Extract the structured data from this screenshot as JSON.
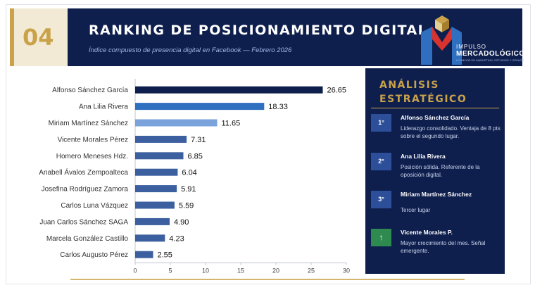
{
  "header": {
    "number": "04",
    "title": "RANKING DE POSICIONAMIENTO DIGITAL",
    "subtitle": "Índice compuesto de presencia digital en Facebook — Febrero 2026"
  },
  "logo": {
    "line1": "IMPULSO",
    "line2": "MERCADOLÓGICO",
    "tagline": "LO MEJOR EN MARKETING, ESTUDIOS Y OPINIÓN"
  },
  "chart_data": {
    "type": "bar",
    "orientation": "horizontal",
    "categories": [
      "Alfonso Sánchez García",
      "Ana Lilia Rivera",
      "Miriam Martínez Sánchez",
      "Vicente Morales Pérez",
      "Homero Meneses Hdz.",
      "Anabell Ávalos Zempoalteca",
      "Josefina Rodríguez Zamora",
      "Carlos Luna Vázquez",
      "Juan Carlos Sánchez SAGA",
      "Marcela González Castillo",
      "Carlos Augusto Pérez"
    ],
    "values": [
      26.65,
      18.33,
      11.65,
      7.31,
      6.85,
      6.04,
      5.91,
      5.59,
      4.9,
      4.23,
      2.55
    ],
    "value_labels": [
      "26.65",
      "18.33",
      "11.65",
      "7.31",
      "6.85",
      "6.04",
      "5.91",
      "5.59",
      "4.90",
      "4.23",
      "2.55"
    ],
    "colors": [
      "#0f1f4d",
      "#2f6fbf",
      "#7aa3db",
      "#3b5f9f",
      "#3b5f9f",
      "#3b5f9f",
      "#3b5f9f",
      "#3b5f9f",
      "#3b5f9f",
      "#3b5f9f",
      "#3b5f9f"
    ],
    "xlim": [
      0,
      30
    ],
    "xticks": [
      "0",
      "5",
      "10",
      "15",
      "20",
      "25",
      "30"
    ],
    "title": "",
    "xlabel": "",
    "ylabel": ""
  },
  "panel": {
    "title_line1": "ANÁLISIS",
    "title_line2": "ESTRATÉGICO",
    "items": [
      {
        "badge": "1°",
        "name": "Alfonso Sánchez García",
        "desc": "Liderazgo consolidado. Ventaja de 8 pts sobre el segundo lugar.",
        "icon": ""
      },
      {
        "badge": "2°",
        "name": "Ana Lilia Rivera",
        "desc": "Posición sólida. Referente de la oposición digital.",
        "icon": ""
      },
      {
        "badge": "3°",
        "name": "Miriam Martínez Sánchez",
        "desc": "Tercer lugar",
        "icon": ""
      },
      {
        "badge": "↑",
        "name": "Vicente Morales P.",
        "desc": "Mayor crecimiento del mes. Señal emergente.",
        "icon": "arrow-up-icon"
      }
    ]
  },
  "colors": {
    "navy": "#0f1f4d",
    "gold": "#c9a24a",
    "green": "#2e8a4f",
    "badge_blue": "#2d4f99"
  }
}
